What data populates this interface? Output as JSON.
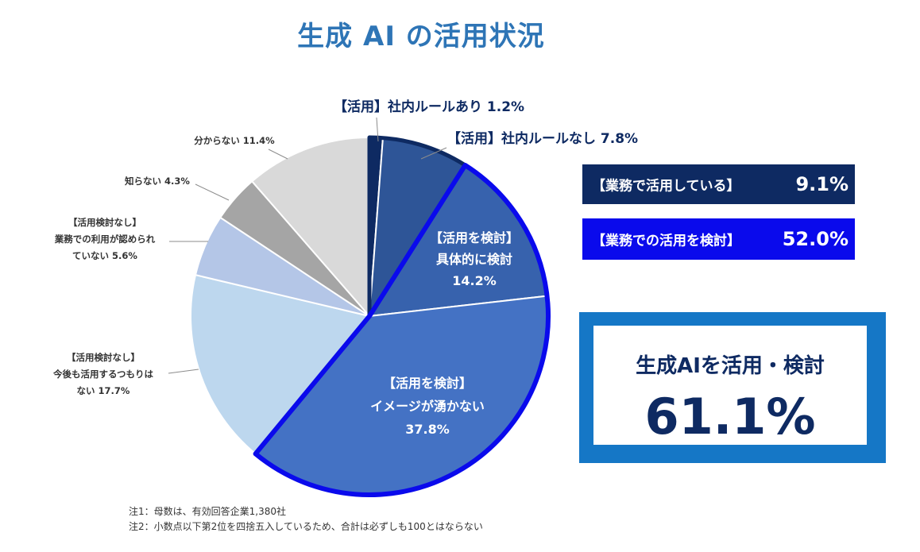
{
  "title": "生成 AI の活用状況",
  "chart_data": {
    "type": "pie",
    "title": "生成 AI の活用状況",
    "slices": [
      {
        "label_lines": [
          "【活用】社内ルールあり 1.2%"
        ],
        "value": 1.2,
        "color": "#0e2a62"
      },
      {
        "label_lines": [
          "【活用】社内ルールなし 7.8%"
        ],
        "value": 7.8,
        "color": "#2e5597"
      },
      {
        "label_lines": [
          "【活用を検討】",
          "具体的に検討",
          "14.2%"
        ],
        "value": 14.2,
        "color": "#3762ad"
      },
      {
        "label_lines": [
          "【活用を検討】",
          "イメージが湧かない",
          "37.8%"
        ],
        "value": 37.8,
        "color": "#4472c4"
      },
      {
        "label_lines": [
          "【活用検討なし】",
          "今後も活用するつもりは",
          "ない 17.7%"
        ],
        "value": 17.7,
        "color": "#bdd7ee"
      },
      {
        "label_lines": [
          "【活用検討なし】",
          "業務での利用が認められ",
          "ていない 5.6%"
        ],
        "value": 5.6,
        "color": "#b4c6e7"
      },
      {
        "label_lines": [
          "知らない 4.3%"
        ],
        "value": 4.3,
        "color": "#a5a5a5"
      },
      {
        "label_lines": [
          "分からない 11.4%"
        ],
        "value": 11.4,
        "color": "#d9d9d9"
      }
    ],
    "highlight_groups": [
      {
        "name": "業務で活用している",
        "slices": [
          0,
          1
        ],
        "color": "#0e2a62"
      },
      {
        "name": "業務での活用を検討",
        "slices": [
          2,
          3
        ],
        "color": "#0a0aec"
      }
    ]
  },
  "summary": {
    "using_label": "【業務で活用している】",
    "using_value": "9.1%",
    "considering_label": "【業務での活用を検討】",
    "considering_value": "52.0%",
    "total_label": "生成AIを活用・検討",
    "total_value": "61.1%"
  },
  "notes": [
    "注1：母数は、有効回答企業1,380社",
    "注2：小数点以下第2位を四捨五入しているため、合計は必ずしも100とはならない"
  ]
}
